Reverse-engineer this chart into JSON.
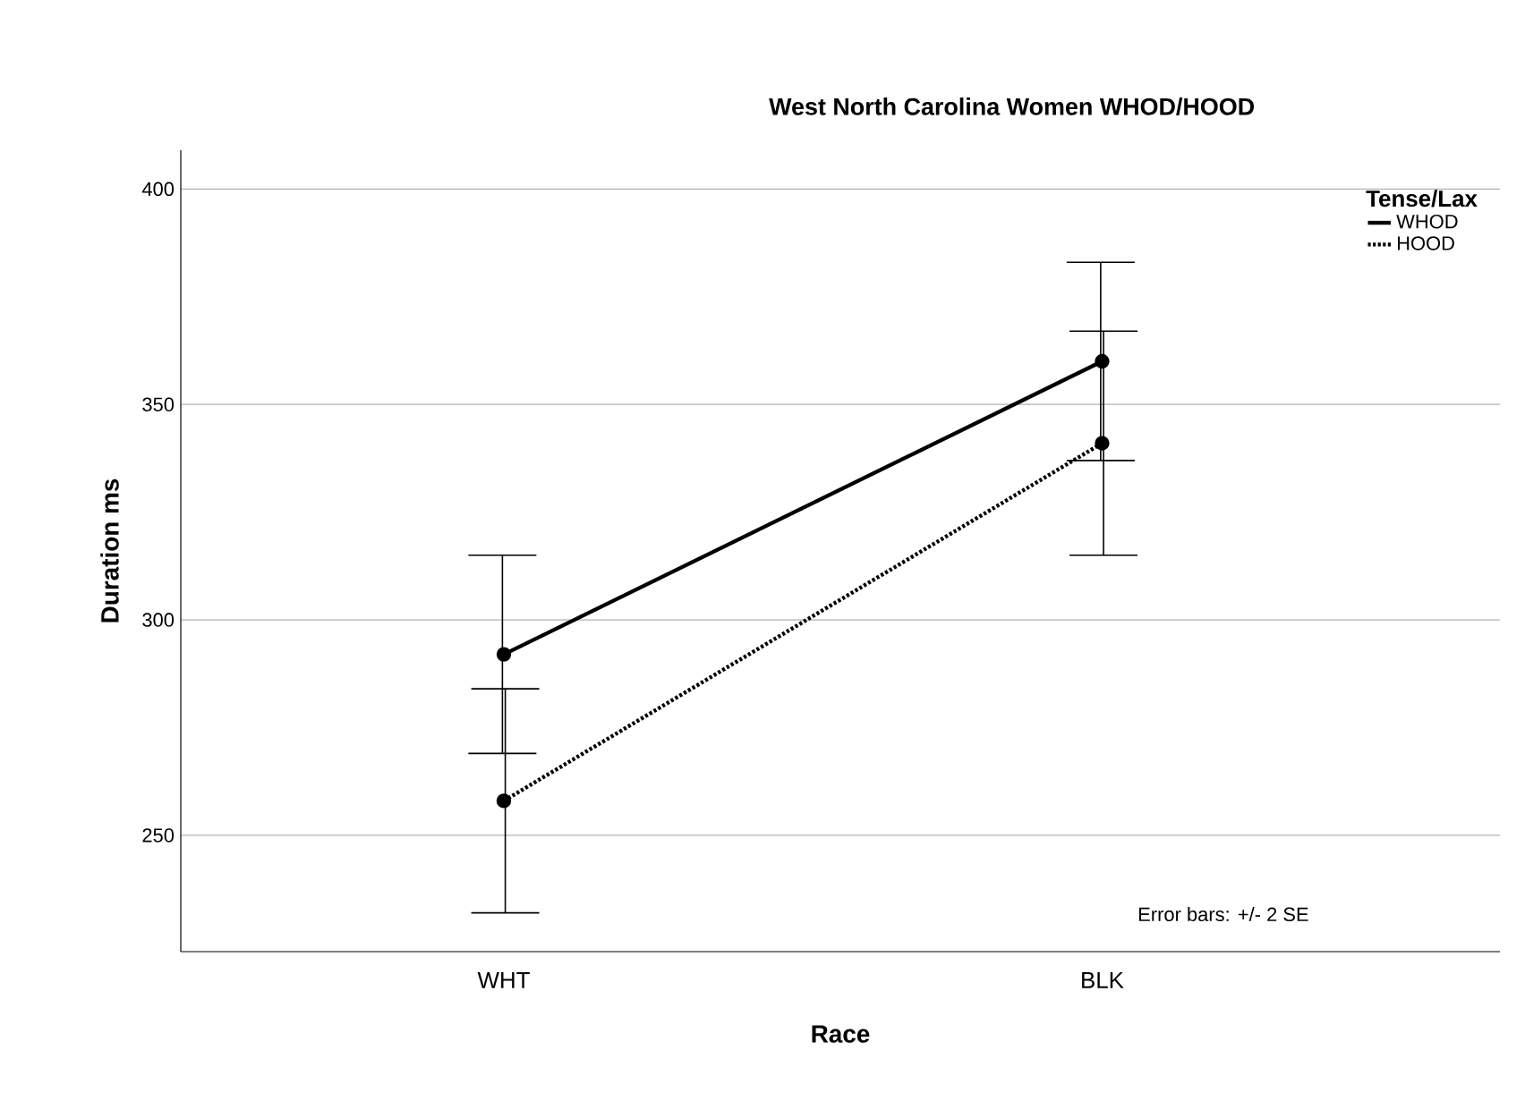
{
  "chart_data": {
    "type": "line",
    "title": "West North Carolina Women WHOD/HOOD",
    "xlabel": "Race",
    "ylabel": "Duration ms",
    "legend_title": "Tense/Lax",
    "categories": [
      "WHT",
      "BLK"
    ],
    "series": [
      {
        "name": "WHOD",
        "color": "#000000",
        "values": [
          292,
          360
        ],
        "errors": [
          23,
          23
        ],
        "line_style": "solid"
      },
      {
        "name": "HOOD",
        "color": "#000000",
        "values": [
          258,
          341
        ],
        "errors": [
          26,
          26
        ],
        "line_style": "dotted"
      }
    ],
    "ylim": [
      223,
      409
    ],
    "yticks": [
      250,
      300,
      350,
      400
    ],
    "grid": "y",
    "legend": "top right",
    "marker": "circle",
    "annotations": [
      "Error bars: +/- 2 SE"
    ]
  }
}
